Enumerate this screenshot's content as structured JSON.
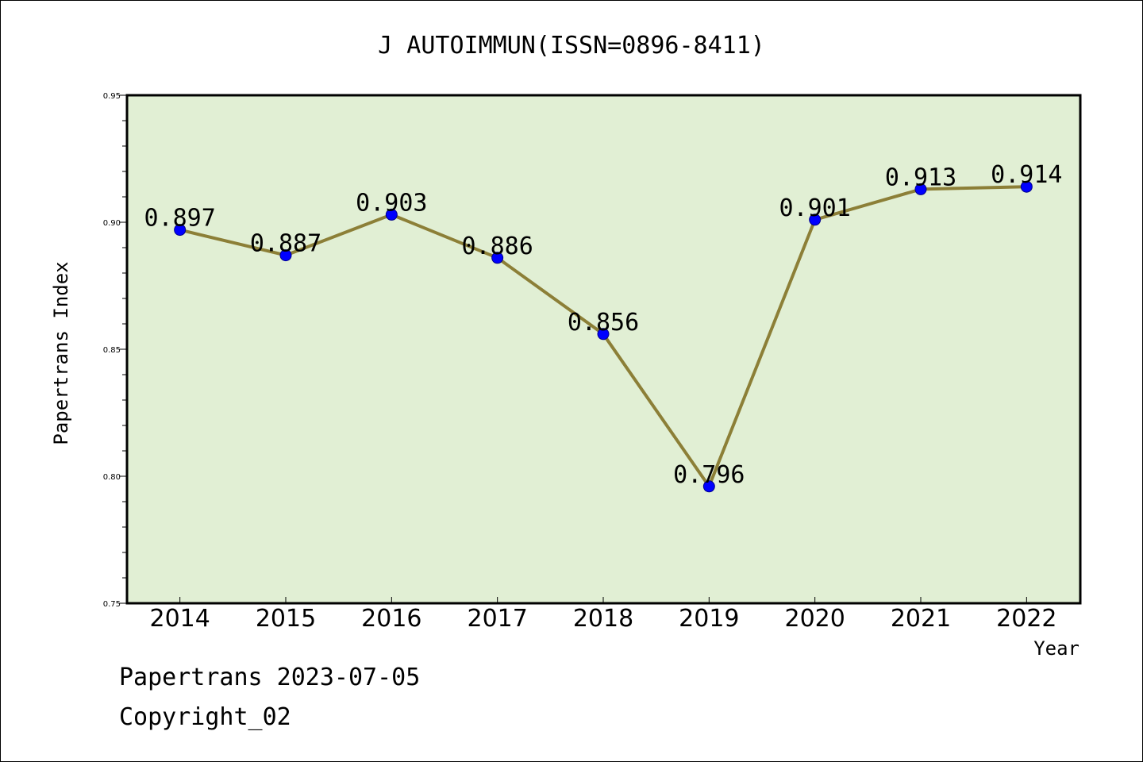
{
  "chart_data": {
    "type": "line",
    "title": "J AUTOIMMUN(ISSN=0896-8411)",
    "xlabel": "Year",
    "ylabel": "Papertrans Index",
    "categories": [
      "2014",
      "2015",
      "2016",
      "2017",
      "2018",
      "2019",
      "2020",
      "2021",
      "2022"
    ],
    "series": [
      {
        "values": [
          0.897,
          0.887,
          0.903,
          0.886,
          0.856,
          0.796,
          0.901,
          0.913,
          0.914
        ]
      }
    ],
    "data_labels": [
      "0.897",
      "0.887",
      "0.903",
      "0.886",
      "0.856",
      "0.796",
      "0.901",
      "0.913",
      "0.914"
    ],
    "ylim": [
      0.75,
      0.95
    ],
    "y_ticks": [
      "0.75",
      "0.80",
      "0.85",
      "0.90",
      "0.95"
    ],
    "grid": false,
    "colors": {
      "plot_background": "#e1efd4",
      "line": "#8c7f37",
      "marker": "#0000ff"
    }
  },
  "footer": {
    "line1": "Papertrans 2023-07-05",
    "line2": "Copyright_02"
  }
}
